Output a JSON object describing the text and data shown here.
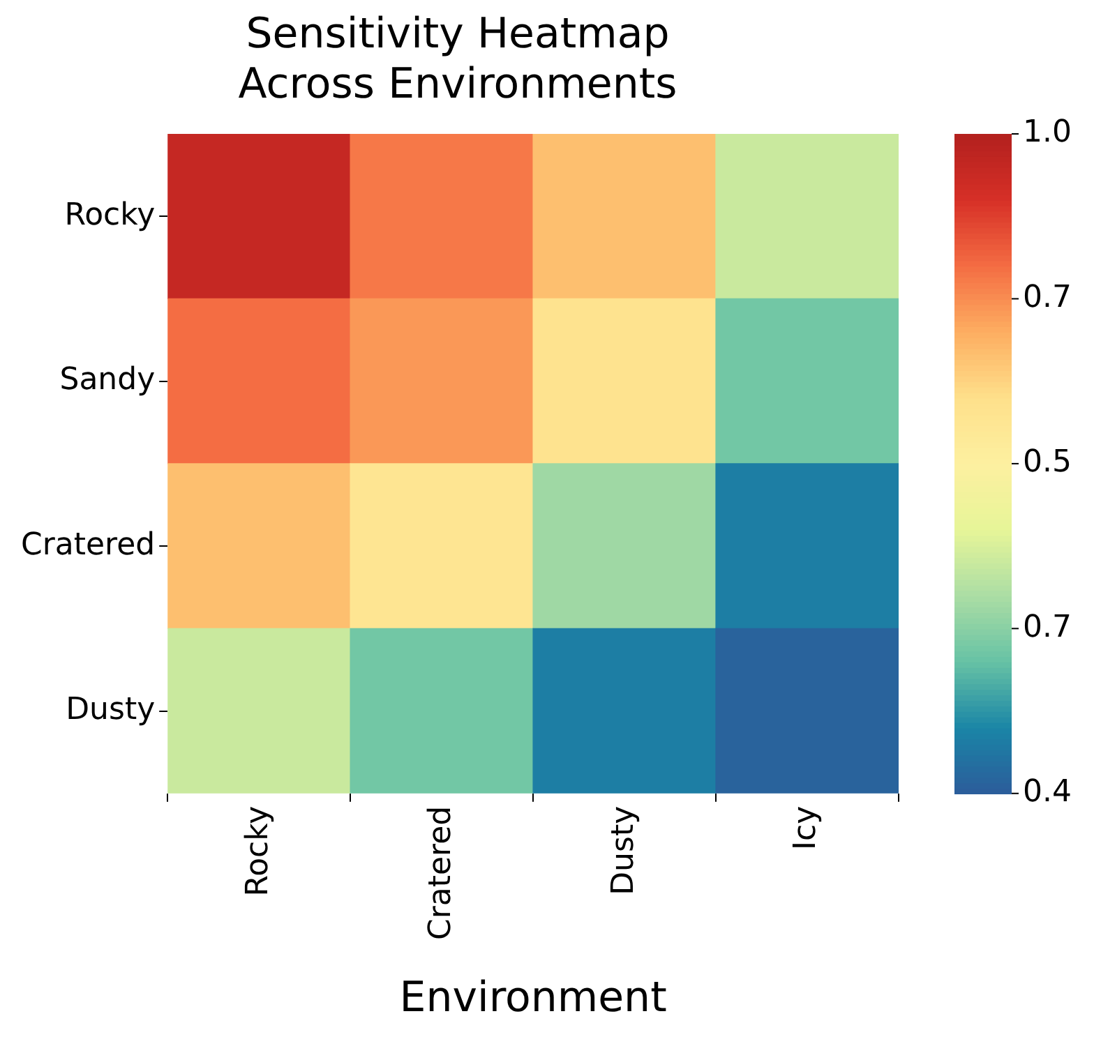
{
  "chart_data": {
    "type": "heatmap",
    "title": "Sensitivity Heatmap Across Environments",
    "xlabel": "Environment",
    "categories": [
      "Rocky",
      "Cratered",
      "Dusty",
      "Icy"
    ],
    "y_categories": [
      "Rocky",
      "Sandy",
      "Cratered",
      "Dusty"
    ],
    "cells": [
      [
        0.97,
        0.87,
        0.8,
        0.61
      ],
      [
        0.88,
        0.84,
        0.75,
        0.53
      ],
      [
        0.8,
        0.74,
        0.57,
        0.45
      ],
      [
        0.61,
        0.53,
        0.45,
        0.41
      ]
    ],
    "clim": [
      0.4,
      1.0
    ],
    "cticks": [
      {
        "value": 1.0,
        "label": "1.0"
      },
      {
        "value": 0.85,
        "label": null
      },
      {
        "value": 0.7,
        "label": null
      },
      {
        "value": 0.55,
        "label": null
      },
      {
        "value": 0.4,
        "label": "0.4"
      }
    ],
    "annotations": [
      "0.7",
      "0.5",
      "0.7"
    ]
  }
}
